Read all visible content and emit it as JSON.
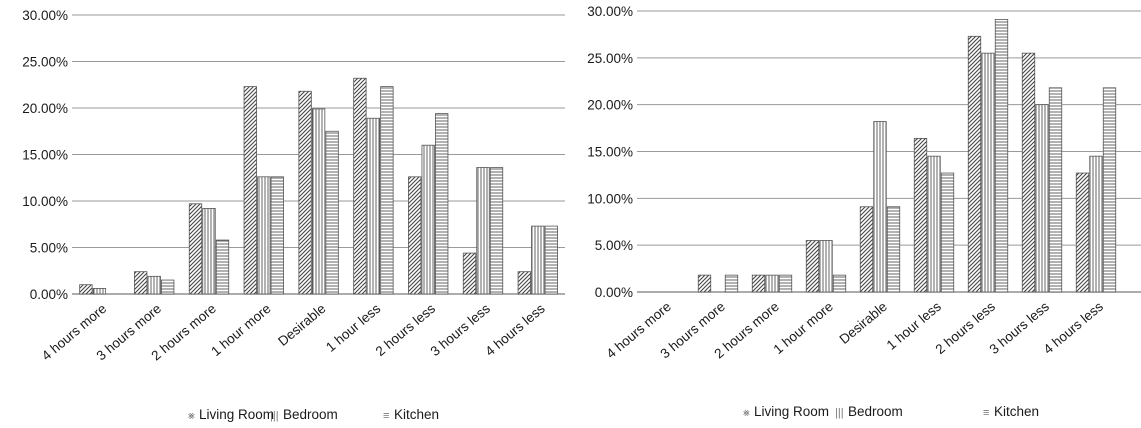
{
  "chart_data": [
    {
      "type": "bar",
      "title": "",
      "xlabel": "",
      "ylabel": "",
      "ylim": [
        0,
        0.3
      ],
      "y_ticks": [
        "0.00%",
        "5.00%",
        "10.00%",
        "15.00%",
        "20.00%",
        "25.00%",
        "30.00%"
      ],
      "grid": "horizontal",
      "legend_position": "bottom",
      "categories": [
        "4 hours more",
        "3 hours more",
        "2 hours more",
        "1 hour more",
        "Desirable",
        "1 hour less",
        "2 hours less",
        "3 hours less",
        "4 hours less"
      ],
      "series": [
        {
          "name": "Living Room",
          "pattern": "diagonal",
          "values": [
            0.01,
            0.024,
            0.097,
            0.223,
            0.218,
            0.232,
            0.126,
            0.044,
            0.024
          ]
        },
        {
          "name": "Bedroom",
          "pattern": "vertical",
          "values": [
            0.006,
            0.019,
            0.092,
            0.126,
            0.199,
            0.189,
            0.16,
            0.136,
            0.073
          ]
        },
        {
          "name": "Kitchen",
          "pattern": "horizontal",
          "values": [
            0.0,
            0.015,
            0.058,
            0.126,
            0.175,
            0.223,
            0.194,
            0.136,
            0.073
          ]
        }
      ]
    },
    {
      "type": "bar",
      "title": "",
      "xlabel": "",
      "ylabel": "",
      "ylim": [
        0,
        0.3
      ],
      "y_ticks": [
        "0.00%",
        "5.00%",
        "10.00%",
        "15.00%",
        "20.00%",
        "25.00%",
        "30.00%"
      ],
      "grid": "horizontal",
      "legend_position": "bottom",
      "categories": [
        "4 hours more",
        "3 hours more",
        "2 hours more",
        "1 hour more",
        "Desirable",
        "1 hour less",
        "2 hours less",
        "3 hours less",
        "4 hours less"
      ],
      "series": [
        {
          "name": "Living Room",
          "pattern": "diagonal",
          "values": [
            0.0,
            0.018,
            0.018,
            0.055,
            0.091,
            0.164,
            0.273,
            0.255,
            0.127
          ]
        },
        {
          "name": "Bedroom",
          "pattern": "vertical",
          "values": [
            0.0,
            0.0,
            0.018,
            0.055,
            0.182,
            0.145,
            0.255,
            0.2,
            0.145
          ]
        },
        {
          "name": "Kitchen",
          "pattern": "horizontal",
          "values": [
            0.0,
            0.018,
            0.018,
            0.018,
            0.091,
            0.127,
            0.291,
            0.218,
            0.218
          ]
        }
      ]
    }
  ]
}
